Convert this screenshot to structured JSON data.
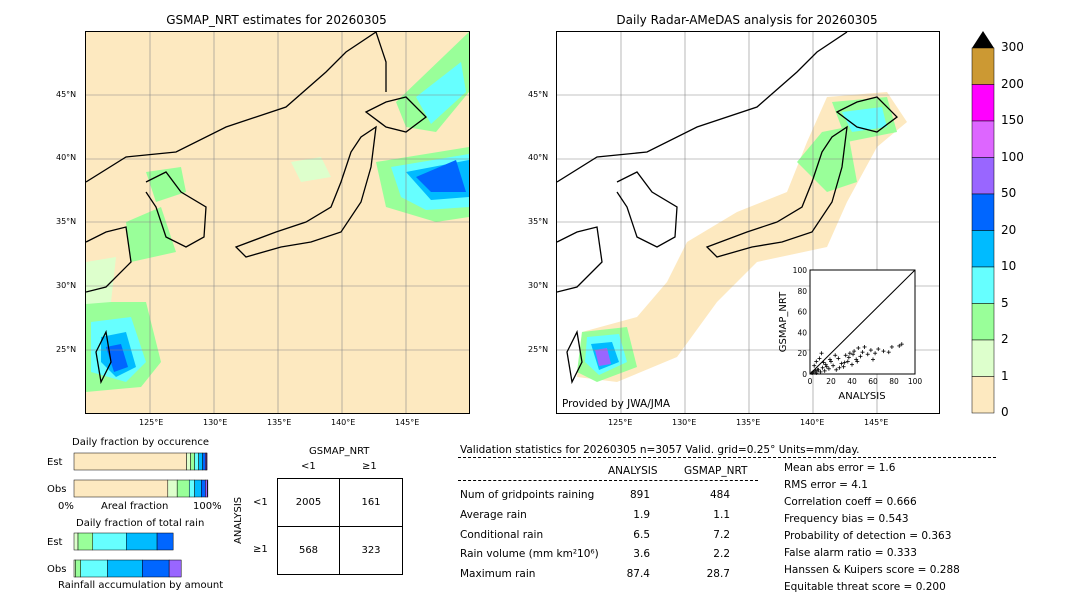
{
  "left_map": {
    "title": "GSMAP_NRT estimates for 20260305",
    "lat_labels": [
      "45°N",
      "40°N",
      "35°N",
      "30°N",
      "25°N"
    ],
    "lon_labels": [
      "125°E",
      "130°E",
      "135°E",
      "140°E",
      "145°E"
    ]
  },
  "right_map": {
    "title": "Daily Radar-AMeDAS analysis for 20260305",
    "lat_labels": [
      "45°N",
      "40°N",
      "35°N",
      "30°N",
      "25°N"
    ],
    "lon_labels": [
      "125°E",
      "130°E",
      "135°E",
      "140°E",
      "145°E"
    ],
    "credit": "Provided by JWA/JMA"
  },
  "colorbar": {
    "labels": [
      "300",
      "200",
      "150",
      "100",
      "50",
      "20",
      "10",
      "5",
      "2",
      "1",
      "0"
    ],
    "colors": [
      "#cc9933",
      "#ff00ff",
      "#dd66ff",
      "#9966ff",
      "#0066ff",
      "#00bbff",
      "#66ffff",
      "#99ff99",
      "#ddffcc",
      "#fde9c0"
    ]
  },
  "chart_data": [
    {
      "type": "scatter",
      "title": "",
      "xlabel": "ANALYSIS",
      "ylabel": "GSMAP_NRT",
      "xlim": [
        0,
        100
      ],
      "ylim": [
        0,
        100
      ],
      "x_ticks": [
        "0",
        "20",
        "40",
        "60",
        "80",
        "100"
      ],
      "y_ticks": [
        "0",
        "20",
        "40",
        "60",
        "80",
        "100"
      ],
      "points": [
        [
          2,
          1
        ],
        [
          3,
          2
        ],
        [
          5,
          3
        ],
        [
          6,
          1
        ],
        [
          8,
          4
        ],
        [
          10,
          2
        ],
        [
          12,
          6
        ],
        [
          14,
          3
        ],
        [
          15,
          9
        ],
        [
          18,
          5
        ],
        [
          20,
          12
        ],
        [
          22,
          8
        ],
        [
          25,
          4
        ],
        [
          27,
          15
        ],
        [
          30,
          10
        ],
        [
          32,
          7
        ],
        [
          34,
          18
        ],
        [
          36,
          12
        ],
        [
          38,
          20
        ],
        [
          40,
          9
        ],
        [
          42,
          22
        ],
        [
          44,
          14
        ],
        [
          46,
          25
        ],
        [
          48,
          17
        ],
        [
          50,
          21
        ],
        [
          52,
          26
        ],
        [
          55,
          19
        ],
        [
          58,
          23
        ],
        [
          60,
          14
        ],
        [
          62,
          20
        ],
        [
          65,
          24
        ],
        [
          70,
          22
        ],
        [
          75,
          21
        ],
        [
          78,
          26
        ],
        [
          85,
          27
        ],
        [
          87.4,
          28.7
        ],
        [
          4,
          8
        ],
        [
          6,
          12
        ],
        [
          9,
          15
        ],
        [
          11,
          20
        ],
        [
          7,
          4
        ],
        [
          13,
          11
        ],
        [
          16,
          7
        ],
        [
          19,
          14
        ],
        [
          24,
          18
        ],
        [
          28,
          6
        ],
        [
          33,
          11
        ],
        [
          37,
          16
        ],
        [
          41,
          19
        ],
        [
          45,
          12
        ]
      ]
    },
    {
      "type": "bar",
      "title": "Daily fraction by occurence",
      "categories": [
        "Est",
        "Obs"
      ],
      "xlabel": "Areal fraction",
      "x_ticks": [
        "0%",
        "100%"
      ],
      "series": [
        {
          "color": "#fde9c0",
          "values": [
            0.84,
            0.7
          ]
        },
        {
          "color": "#ddffcc",
          "values": [
            0.03,
            0.07
          ]
        },
        {
          "color": "#99ff99",
          "values": [
            0.03,
            0.09
          ]
        },
        {
          "color": "#66ffff",
          "values": [
            0.03,
            0.04
          ]
        },
        {
          "color": "#00bbff",
          "values": [
            0.03,
            0.05
          ]
        },
        {
          "color": "#0066ff",
          "values": [
            0.02,
            0.03
          ]
        },
        {
          "color": "#9966ff",
          "values": [
            0.01,
            0.015
          ]
        },
        {
          "color": "#dd66ff",
          "values": [
            0.003,
            0.004
          ]
        }
      ]
    },
    {
      "type": "bar",
      "title": "Daily fraction of total rain",
      "categories": [
        "Est",
        "Obs"
      ],
      "xlabel": "Rainfall accumulation by amount",
      "series": [
        {
          "color": "#ddffcc",
          "values": [
            0.03,
            0.01
          ]
        },
        {
          "color": "#99ff99",
          "values": [
            0.11,
            0.04
          ]
        },
        {
          "color": "#66ffff",
          "values": [
            0.25,
            0.2
          ]
        },
        {
          "color": "#00bbff",
          "values": [
            0.23,
            0.26
          ]
        },
        {
          "color": "#0066ff",
          "values": [
            0.12,
            0.2
          ]
        },
        {
          "color": "#9966ff",
          "values": [
            0.0,
            0.09
          ]
        }
      ]
    },
    {
      "type": "table",
      "title": "GSMAP_NRT",
      "col_headers": [
        "<1",
        "≥1"
      ],
      "row_label": "ANALYSIS",
      "row_headers": [
        "<1",
        "≥1"
      ],
      "cells": [
        [
          "2005",
          "161"
        ],
        [
          "568",
          "323"
        ]
      ]
    }
  ],
  "validation": {
    "header": "Validation statistics for 20260305  n=3057 Valid. grid=0.25° Units=mm/day.",
    "col_analysis": "ANALYSIS",
    "col_gsmap": "GSMAP_NRT",
    "rows": [
      {
        "label": "Num of gridpoints raining",
        "analysis": "891",
        "gsmap": "484"
      },
      {
        "label": "Average rain",
        "analysis": "1.9",
        "gsmap": "1.1"
      },
      {
        "label": "Conditional rain",
        "analysis": "6.5",
        "gsmap": "7.2"
      },
      {
        "label": "Rain volume (mm km²10⁶)",
        "analysis": "3.6",
        "gsmap": "2.2"
      },
      {
        "label": "Maximum rain",
        "analysis": "87.4",
        "gsmap": "28.7"
      }
    ],
    "scores": [
      "Mean abs error =    1.6",
      "RMS error =    4.1",
      "Correlation coeff =  0.666",
      "Frequency bias =  0.543",
      "Probability of detection =  0.363",
      "False alarm ratio =  0.333",
      "Hanssen & Kuipers score =  0.288",
      "Equitable threat score =  0.200"
    ]
  }
}
